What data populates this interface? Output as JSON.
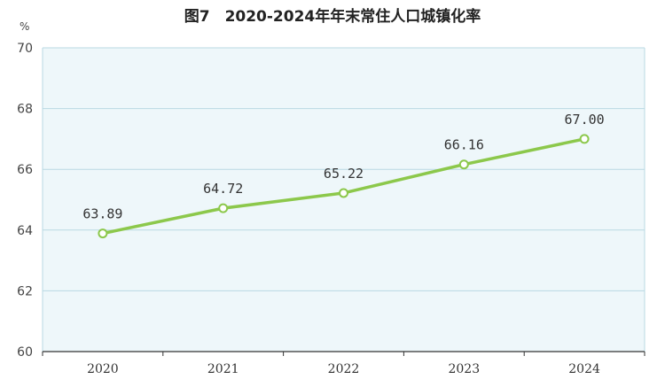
{
  "colors": {
    "plot_background": "#eef7fa",
    "grid": "#b9d9e3",
    "line": "#8cc84b",
    "marker_fill": "#ffffff",
    "axis": "#333333"
  },
  "chart_data": {
    "type": "line",
    "title": "图7　2020-2024年年末常住人口城镇化率",
    "xlabel": "",
    "ylabel": "",
    "y_unit": "%",
    "categories": [
      "2020",
      "2021",
      "2022",
      "2023",
      "2024"
    ],
    "series": [
      {
        "values": [
          63.89,
          64.72,
          65.22,
          66.16,
          67.0
        ]
      }
    ],
    "data_labels": [
      "63.89",
      "64.72",
      "65.22",
      "66.16",
      "67.00"
    ],
    "ylim": [
      60,
      70
    ],
    "yticks": [
      60,
      62,
      64,
      66,
      68,
      70
    ],
    "grid": true,
    "legend": "none"
  }
}
